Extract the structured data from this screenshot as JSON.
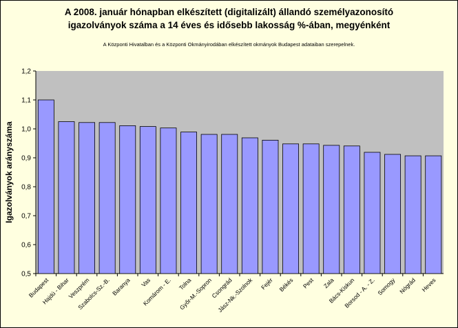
{
  "chart_data": {
    "type": "bar",
    "title_line1": "A 2008. január hónapban elkészített (digitalizált) állandó személyazonosító",
    "title_line2": "igazolványok száma a 14 éves és idősebb lakosság %-ában, megyénként",
    "subtitle": "A  Központi Hivatalban és  a Központi Okmányirodában elkészített  okmányok Budapest  adataiban szerepelnek.",
    "ylabel": "Igazolványok arányszáma",
    "ylim": [
      0.5,
      1.2
    ],
    "yticks": [
      "0,5",
      "0,6",
      "0,7",
      "0,8",
      "0,9",
      "1,0",
      "1,1",
      "1,2"
    ],
    "grid": false,
    "categories": [
      "Budapest",
      "Hajdú - Bihar",
      "Veszprém",
      "Szabolcs-Sz.-B.",
      "Baranya",
      "Vas",
      "Komárom - E.",
      "Tolna",
      "Győr-M.-Sopron",
      "Csongrád",
      "Jász-Nk.-Szolnok",
      "Fejér",
      "Békés",
      "Pest",
      "Zala",
      "Bács-Kiskun",
      "Borsod - A. - Z.",
      "Somogy",
      "Nógrád",
      "Heves"
    ],
    "values": [
      1.1,
      1.025,
      1.022,
      1.022,
      1.011,
      1.008,
      1.003,
      0.989,
      0.981,
      0.981,
      0.969,
      0.961,
      0.948,
      0.948,
      0.943,
      0.941,
      0.919,
      0.912,
      0.907,
      0.907
    ],
    "colors": {
      "bar": "#9999ff",
      "bar_stroke": "#000000",
      "plot_bg": "#c0c0c0",
      "page_bg": "#ffffe0"
    }
  }
}
